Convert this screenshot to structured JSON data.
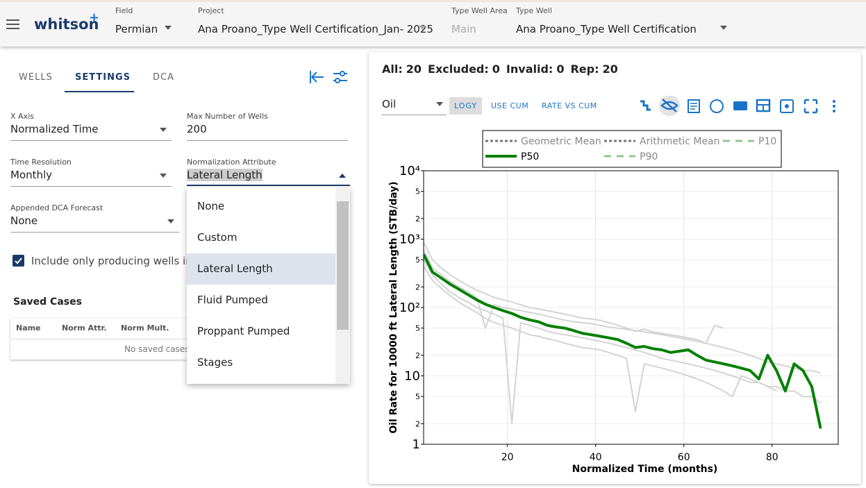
{
  "header": {
    "logo": "whitson",
    "logo_mark": "+",
    "fields": [
      {
        "label": "Field",
        "value": "Permian"
      },
      {
        "label": "Project",
        "value": "Ana Proano_Type Well Certification_Jan- 2025"
      },
      {
        "label": "Type Well Area",
        "value": "Main"
      },
      {
        "label": "Type Well",
        "value": "Ana Proano_Type Well Certification"
      }
    ]
  },
  "tabs": [
    "WELLS",
    "SETTINGS",
    "DCA"
  ],
  "settings": {
    "fields": [
      {
        "label": "X Axis",
        "value": "Normalized Time"
      },
      {
        "label": "Max Number of Wells",
        "value": "200"
      },
      {
        "label": "Time Resolution",
        "value": "Monthly"
      },
      {
        "label": "Normalization Attribute",
        "value": "Lateral Length"
      },
      {
        "label": "Appended DCA Forecast",
        "value": "None"
      }
    ],
    "checkbox": "Include only producing wells in av"
  },
  "dropdown": {
    "options": [
      "None",
      "Custom",
      "Lateral Length",
      "Fluid Pumped",
      "Proppant Pumped",
      "Stages"
    ],
    "selected": 2
  },
  "saved_cases": {
    "title": "Saved Cases",
    "columns": [
      "Name",
      "Norm Attr.",
      "Norm Mult."
    ],
    "empty": "No saved cases"
  },
  "stats": [
    {
      "label": "All:",
      "value": 20
    },
    {
      "label": "Excluded:",
      "value": 0
    },
    {
      "label": "Invalid:",
      "value": 0
    },
    {
      "label": "Rep:",
      "value": 20
    }
  ],
  "toolbar": {
    "select": "Oil",
    "buttons": [
      "LOGY",
      "USE CUM",
      "RATE VS CUM"
    ]
  },
  "chart_data": {
    "type": "line",
    "x_label": "Normalized Time (months)",
    "y_label": "Oil Rate for 10000 ft Lateral Length (STB/day)",
    "log_y": true,
    "grid": true,
    "xlim": [
      1,
      95
    ],
    "ylim": [
      1,
      10000
    ],
    "xticks": [
      20,
      40,
      60,
      80
    ],
    "yticks": [
      1,
      2,
      5,
      10,
      {
        "value": 20,
        "label": "2"
      },
      {
        "value": 50,
        "label": "5"
      },
      {
        "value": 100,
        "label": "10²"
      },
      {
        "value": 200,
        "label": "2"
      },
      {
        "value": 500,
        "label": "5"
      },
      {
        "value": 1000,
        "label": "10³"
      },
      {
        "value": 2000,
        "label": "2"
      },
      {
        "value": 5000,
        "label": "5"
      },
      {
        "value": 10000,
        "label": "10⁴"
      }
    ],
    "legend": [
      {
        "name": "Geometric Mean",
        "color": "#777777",
        "dash": "dot"
      },
      {
        "name": "Arithmetic Mean",
        "color": "#777777",
        "dash": "dot"
      },
      {
        "name": "P10",
        "color": "#8fc88f",
        "dash": "dash"
      },
      {
        "name": "P50",
        "color": "#008000",
        "dash": "solid"
      },
      {
        "name": "P90",
        "color": "#8fc88f",
        "dash": "dash"
      }
    ],
    "x": [
      1,
      3,
      5,
      7,
      9,
      11,
      13,
      15,
      17,
      19,
      21,
      23,
      25,
      27,
      29,
      31,
      33,
      35,
      37,
      39,
      41,
      43,
      45,
      47,
      49,
      51,
      53,
      55,
      57,
      59,
      61,
      63,
      65,
      67,
      69,
      71,
      73,
      75,
      77,
      79,
      81,
      83,
      85,
      87,
      89,
      91
    ],
    "series": [
      {
        "color": "#d3d3d3",
        "values": [
          900,
          500,
          380,
          300,
          250,
          210,
          180,
          160,
          140,
          130,
          120,
          110,
          100,
          95,
          90,
          85,
          80,
          75,
          70,
          68,
          65,
          60,
          55,
          50,
          45,
          48,
          44,
          42,
          40,
          38,
          36,
          34,
          30,
          28,
          26,
          24,
          22,
          20,
          18,
          16,
          15,
          14,
          13,
          12,
          12,
          11
        ]
      },
      {
        "color": "#d3d3d3",
        "values": [
          400,
          250,
          190,
          150,
          120,
          100,
          85,
          70,
          60,
          55,
          50,
          45,
          40,
          38,
          35,
          33,
          30,
          28,
          26,
          25,
          24,
          22,
          20,
          18,
          3,
          15,
          14,
          13,
          12,
          11,
          10,
          9,
          8,
          7,
          6,
          5,
          10,
          9,
          8,
          7,
          6,
          null,
          null,
          null,
          null,
          null
        ]
      },
      {
        "color": "#d3d3d3",
        "values": [
          700,
          380,
          300,
          240,
          200,
          170,
          140,
          50,
          110,
          100,
          95,
          90,
          85,
          80,
          75,
          70,
          65,
          62,
          60,
          58,
          55,
          52,
          50,
          48,
          46,
          44,
          42,
          40,
          38,
          36,
          34,
          32,
          30,
          55,
          50,
          null,
          null,
          null,
          null,
          null,
          null,
          null,
          null,
          null,
          null,
          null
        ]
      },
      {
        "color": "#d3d3d3",
        "values": [
          500,
          300,
          220,
          170,
          140,
          120,
          100,
          90,
          80,
          70,
          2,
          60,
          55,
          50,
          45,
          42,
          40,
          38,
          36,
          34,
          32,
          30,
          28,
          26,
          24,
          22,
          20,
          18,
          17,
          16,
          15,
          14,
          13,
          12,
          11,
          10,
          9,
          8,
          8,
          7,
          7,
          6,
          6,
          5,
          5,
          4
        ]
      },
      {
        "color": "#008000",
        "values": [
          600,
          330,
          270,
          220,
          185,
          155,
          130,
          112,
          100,
          90,
          82,
          72,
          66,
          62,
          55,
          52,
          50,
          46,
          42,
          40,
          38,
          36,
          34,
          30,
          26,
          27,
          25,
          24,
          22,
          23,
          24,
          20,
          17,
          16,
          15,
          14,
          13,
          12,
          9,
          20,
          12,
          6,
          15,
          12,
          7,
          1.7
        ]
      }
    ]
  }
}
